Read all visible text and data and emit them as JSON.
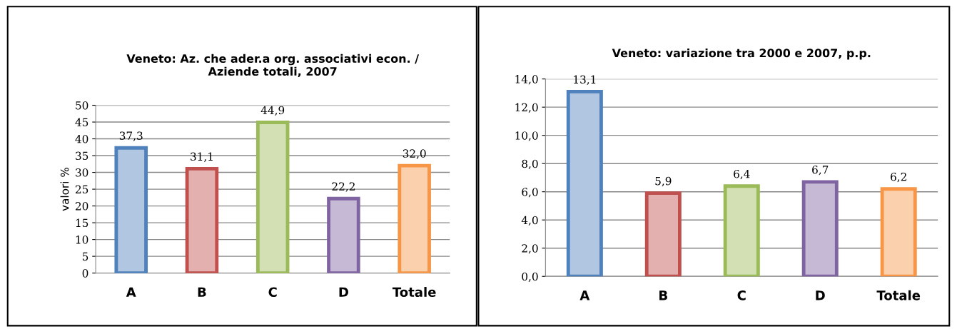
{
  "chart_data": [
    {
      "type": "bar",
      "title": "Veneto: Az. che ader.a org. associativi econ. /\nAziende totali, 2007",
      "ylabel": "valori %",
      "categories": [
        "A",
        "B",
        "C",
        "D",
        "Totale"
      ],
      "values": [
        37.3,
        31.1,
        44.9,
        22.2,
        32.0
      ],
      "value_labels": [
        "37,3",
        "31,1",
        "44,9",
        "22,2",
        "32,0"
      ],
      "colors": [
        "#4f81bd",
        "#c0504d",
        "#9bbb59",
        "#8064a2",
        "#f79646"
      ],
      "ylim": [
        0,
        50
      ],
      "yticks": [
        0,
        5,
        10,
        15,
        20,
        25,
        30,
        35,
        40,
        45,
        50
      ],
      "grid": "y",
      "legend": false
    },
    {
      "type": "bar",
      "title": "Veneto: variazione tra 2000 e 2007, p.p.",
      "categories": [
        "A",
        "B",
        "C",
        "D",
        "Totale"
      ],
      "values": [
        13.1,
        5.9,
        6.4,
        6.7,
        6.2
      ],
      "value_labels": [
        "13,1",
        "5,9",
        "6,4",
        "6,7",
        "6,2"
      ],
      "colors": [
        "#4f81bd",
        "#c0504d",
        "#9bbb59",
        "#8064a2",
        "#f79646"
      ],
      "ylim": [
        0,
        14
      ],
      "yticks": [
        {
          "value": 0,
          "label": "0,0"
        },
        {
          "value": 2,
          "label": "2,0"
        },
        {
          "value": 4,
          "label": "4,0"
        },
        {
          "value": 6,
          "label": "6,0"
        },
        {
          "value": 8,
          "label": "8,0"
        },
        {
          "value": 10,
          "label": "10,0"
        },
        {
          "value": 12,
          "label": "12,0"
        },
        {
          "value": 14,
          "label": "14,0"
        }
      ],
      "grid": "y",
      "legend": false
    }
  ]
}
